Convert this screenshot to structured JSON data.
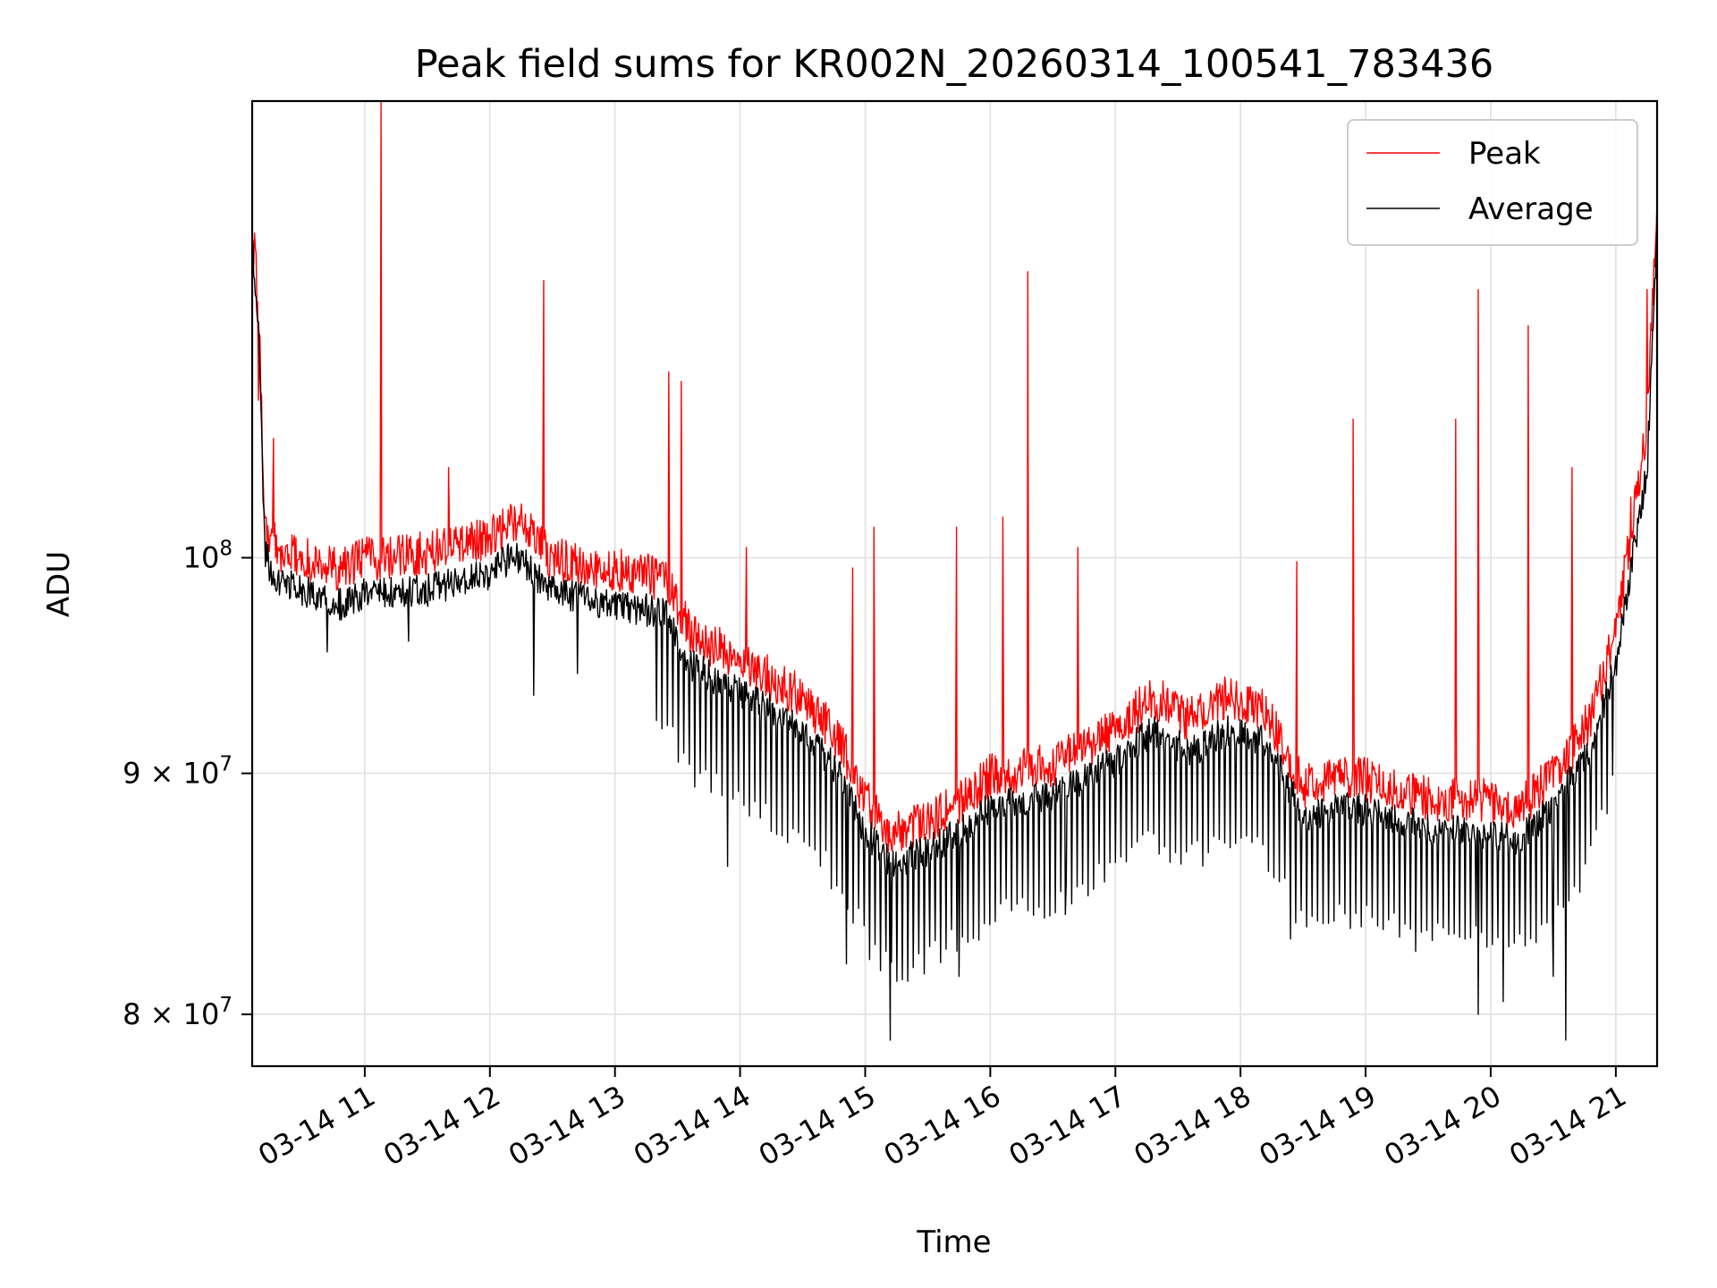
{
  "chart_data": {
    "type": "line",
    "title": "Peak field sums for KR002N_20260314_100541_783436",
    "xlabel": "Time",
    "ylabel": "ADU",
    "yscale": "log",
    "ylim": [
      78000000,
      125000000
    ],
    "xlim_hours": [
      10.1,
      21.33
    ],
    "grid": true,
    "legend_position": "upper right",
    "x_ticks": [
      {
        "hour": 11,
        "label": "03-14 11"
      },
      {
        "hour": 12,
        "label": "03-14 12"
      },
      {
        "hour": 13,
        "label": "03-14 13"
      },
      {
        "hour": 14,
        "label": "03-14 14"
      },
      {
        "hour": 15,
        "label": "03-14 15"
      },
      {
        "hour": 16,
        "label": "03-14 16"
      },
      {
        "hour": 17,
        "label": "03-14 17"
      },
      {
        "hour": 18,
        "label": "03-14 18"
      },
      {
        "hour": 19,
        "label": "03-14 19"
      },
      {
        "hour": 20,
        "label": "03-14 20"
      },
      {
        "hour": 21,
        "label": "03-14 21"
      }
    ],
    "y_ticks": [
      {
        "value": 80000000,
        "base": "8 × 10",
        "exp": "7"
      },
      {
        "value": 90000000,
        "base": "9 × 10",
        "exp": "7"
      },
      {
        "value": 100000000,
        "base": "10",
        "exp": "8"
      }
    ],
    "series": [
      {
        "name": "Peak",
        "color": "#ff0000",
        "baseline": {
          "x": [
            10.1,
            10.15,
            10.2,
            10.25,
            10.3,
            10.5,
            10.8,
            11.0,
            11.5,
            12.0,
            12.2,
            12.5,
            13.0,
            13.4,
            13.6,
            13.9,
            14.2,
            14.5,
            14.8,
            15.0,
            15.2,
            15.5,
            15.8,
            16.0,
            16.5,
            17.0,
            17.3,
            17.6,
            17.9,
            18.2,
            18.5,
            18.9,
            19.2,
            19.5,
            19.7,
            19.9,
            20.2,
            20.5,
            20.8,
            21.0,
            21.15,
            21.25,
            21.33
          ],
          "y": [
            117000000,
            113000000,
            101500000,
            100500000,
            100000000,
            99500000,
            99000000,
            99500000,
            99800000,
            100500000,
            101500000,
            99500000,
            99000000,
            98500000,
            96000000,
            95000000,
            94000000,
            93000000,
            91000000,
            88500000,
            87000000,
            87500000,
            88500000,
            89500000,
            90000000,
            91500000,
            93000000,
            92000000,
            93000000,
            92500000,
            89000000,
            89500000,
            89000000,
            88500000,
            88500000,
            88500000,
            88000000,
            89500000,
            92000000,
            96000000,
            102000000,
            106000000,
            118000000
          ]
        },
        "spikes": [
          {
            "x": 10.15,
            "y": 108000000
          },
          {
            "x": 10.27,
            "y": 106000000
          },
          {
            "x": 11.13,
            "y": 125000000
          },
          {
            "x": 11.67,
            "y": 104500000
          },
          {
            "x": 12.43,
            "y": 114500000
          },
          {
            "x": 13.43,
            "y": 109500000
          },
          {
            "x": 13.53,
            "y": 109000000
          },
          {
            "x": 14.05,
            "y": 100500000
          },
          {
            "x": 14.9,
            "y": 99500000
          },
          {
            "x": 15.07,
            "y": 101500000
          },
          {
            "x": 15.73,
            "y": 101500000
          },
          {
            "x": 16.1,
            "y": 102000000
          },
          {
            "x": 16.3,
            "y": 115000000
          },
          {
            "x": 16.7,
            "y": 100500000
          },
          {
            "x": 18.45,
            "y": 99800000
          },
          {
            "x": 18.9,
            "y": 107000000
          },
          {
            "x": 19.72,
            "y": 107000000
          },
          {
            "x": 19.9,
            "y": 114000000
          },
          {
            "x": 20.3,
            "y": 112000000
          },
          {
            "x": 20.65,
            "y": 104500000
          },
          {
            "x": 21.12,
            "y": 103000000
          },
          {
            "x": 21.25,
            "y": 114000000
          }
        ]
      },
      {
        "name": "Average",
        "color": "#000000",
        "baseline": {
          "x": [
            10.1,
            10.15,
            10.2,
            10.25,
            10.3,
            10.5,
            10.8,
            11.0,
            11.5,
            12.0,
            12.2,
            12.5,
            13.0,
            13.4,
            13.6,
            13.9,
            14.2,
            14.5,
            14.8,
            15.0,
            15.2,
            15.5,
            15.8,
            16.0,
            16.5,
            17.0,
            17.3,
            17.6,
            17.9,
            18.2,
            18.5,
            18.9,
            19.2,
            19.5,
            19.7,
            19.9,
            20.2,
            20.5,
            20.8,
            21.0,
            21.15,
            21.25,
            21.33
          ],
          "y": [
            116500000,
            112500000,
            100500000,
            99500000,
            99000000,
            98500000,
            97800000,
            98300000,
            98500000,
            99300000,
            100300000,
            98400000,
            97800000,
            97400000,
            95000000,
            94000000,
            93000000,
            92000000,
            90000000,
            87600000,
            86200000,
            86700000,
            87700000,
            88600000,
            89100000,
            90600000,
            92000000,
            91000000,
            92000000,
            91500000,
            88200000,
            88600000,
            88200000,
            87700000,
            87600000,
            87600000,
            87100000,
            88600000,
            91000000,
            95000000,
            100500000,
            104500000,
            117000000
          ]
        },
        "dips": [
          {
            "x": 10.7,
            "y": 95500000
          },
          {
            "x": 11.35,
            "y": 96000000
          },
          {
            "x": 12.35,
            "y": 93500000
          },
          {
            "x": 12.7,
            "y": 94500000
          },
          {
            "x": 13.9,
            "y": 86000000
          },
          {
            "x": 14.85,
            "y": 82000000
          },
          {
            "x": 15.2,
            "y": 79000000
          },
          {
            "x": 15.75,
            "y": 81500000
          },
          {
            "x": 16.6,
            "y": 84000000
          },
          {
            "x": 18.4,
            "y": 83000000
          },
          {
            "x": 19.4,
            "y": 82500000
          },
          {
            "x": 19.9,
            "y": 80000000
          },
          {
            "x": 20.1,
            "y": 80500000
          },
          {
            "x": 20.5,
            "y": 81500000
          },
          {
            "x": 20.6,
            "y": 79000000
          }
        ]
      }
    ]
  }
}
